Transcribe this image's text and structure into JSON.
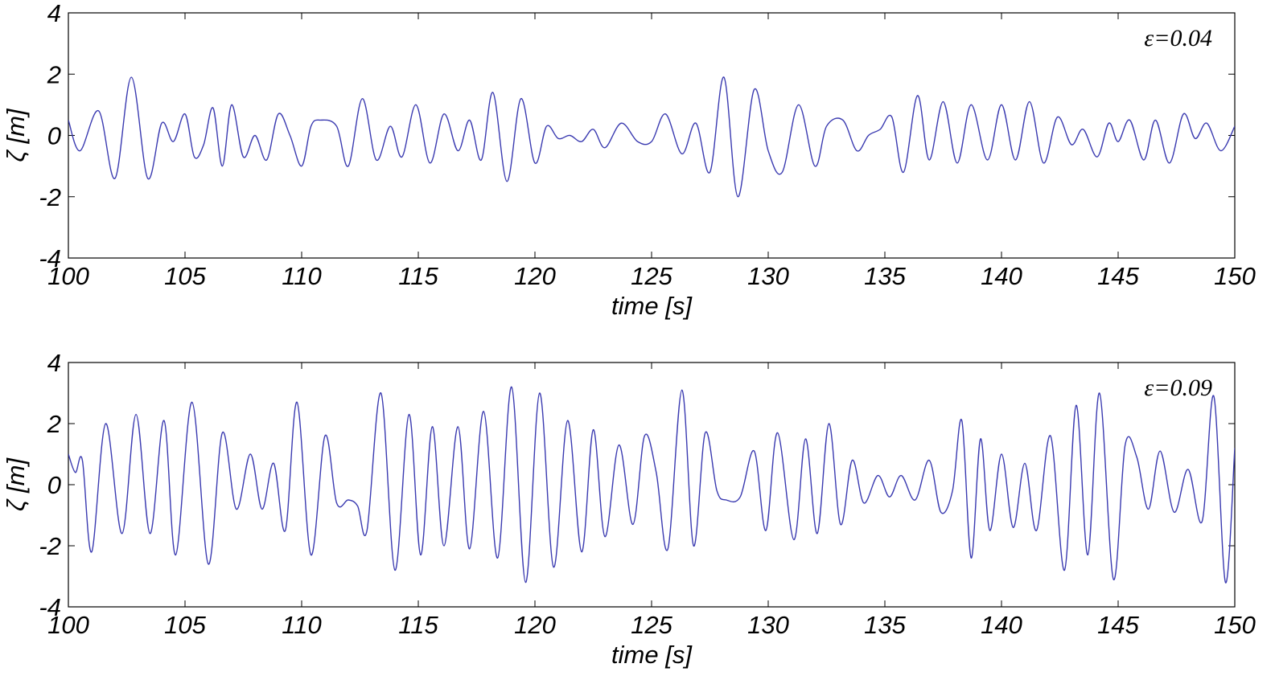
{
  "chart_data": [
    {
      "type": "line",
      "annotation": "ε=0.04",
      "xlabel": "time [s]",
      "ylabel": "ζ [m]",
      "xlim": [
        100,
        150
      ],
      "ylim": [
        -4,
        4
      ],
      "xticks": [
        100,
        105,
        110,
        115,
        120,
        125,
        130,
        135,
        140,
        145,
        150
      ],
      "yticks": [
        4,
        2,
        0,
        -2,
        -4
      ],
      "grid": false,
      "x": [
        100.0,
        100.5,
        101.3,
        102.0,
        102.7,
        103.4,
        104.0,
        104.5,
        105.0,
        105.4,
        105.8,
        106.2,
        106.6,
        107.0,
        107.5,
        108.0,
        108.5,
        109.0,
        109.5,
        110.0,
        110.4,
        110.8,
        111.5,
        112.0,
        112.6,
        113.2,
        113.8,
        114.3,
        114.9,
        115.5,
        116.1,
        116.7,
        117.2,
        117.7,
        118.2,
        118.8,
        119.4,
        120.0,
        120.5,
        121.0,
        121.5,
        122.0,
        122.5,
        123.0,
        123.7,
        124.4,
        125.0,
        125.6,
        126.3,
        126.9,
        127.5,
        128.1,
        128.7,
        129.4,
        130.0,
        130.6,
        131.3,
        132.0,
        132.5,
        133.2,
        133.8,
        134.3,
        134.8,
        135.3,
        135.8,
        136.4,
        136.9,
        137.5,
        138.1,
        138.7,
        139.4,
        140.0,
        140.6,
        141.2,
        141.8,
        142.4,
        143.0,
        143.5,
        144.1,
        144.6,
        145.0,
        145.5,
        146.1,
        146.6,
        147.2,
        147.8,
        148.3,
        148.8,
        149.4,
        150.0
      ],
      "values": [
        0.5,
        -0.5,
        0.8,
        -1.4,
        1.9,
        -1.4,
        0.4,
        -0.2,
        0.7,
        -0.7,
        -0.3,
        0.9,
        -1.0,
        1.0,
        -0.7,
        0.0,
        -0.8,
        0.7,
        0.0,
        -1.0,
        0.3,
        0.5,
        0.3,
        -1.0,
        1.2,
        -0.8,
        0.3,
        -0.7,
        1.0,
        -0.9,
        0.7,
        -0.5,
        0.5,
        -0.8,
        1.4,
        -1.5,
        1.2,
        -0.9,
        0.3,
        -0.1,
        0.0,
        -0.2,
        0.2,
        -0.4,
        0.4,
        -0.2,
        -0.2,
        0.7,
        -0.6,
        0.4,
        -1.2,
        1.9,
        -2.0,
        1.5,
        -0.5,
        -1.2,
        1.0,
        -1.0,
        0.3,
        0.5,
        -0.5,
        0.0,
        0.2,
        0.6,
        -1.2,
        1.3,
        -0.8,
        1.1,
        -0.9,
        1.0,
        -0.8,
        1.0,
        -0.8,
        1.1,
        -0.9,
        0.6,
        -0.3,
        0.2,
        -0.7,
        0.4,
        -0.2,
        0.5,
        -0.8,
        0.5,
        -0.9,
        0.7,
        -0.1,
        0.4,
        -0.5,
        0.3
      ]
    },
    {
      "type": "line",
      "annotation": "ε=0.09",
      "xlabel": "time [s]",
      "ylabel": "ζ [m]",
      "xlim": [
        100,
        150
      ],
      "ylim": [
        -4,
        4
      ],
      "xticks": [
        100,
        105,
        110,
        115,
        120,
        125,
        130,
        135,
        140,
        145,
        150
      ],
      "yticks": [
        4,
        2,
        0,
        -2,
        -4
      ],
      "grid": false,
      "x": [
        100.0,
        100.3,
        100.6,
        101.0,
        101.6,
        102.3,
        102.9,
        103.5,
        104.1,
        104.6,
        105.3,
        106.0,
        106.6,
        107.2,
        107.8,
        108.3,
        108.8,
        109.3,
        109.8,
        110.4,
        111.0,
        111.5,
        112.0,
        112.4,
        112.8,
        113.4,
        114.0,
        114.6,
        115.1,
        115.6,
        116.1,
        116.7,
        117.2,
        117.8,
        118.4,
        119.0,
        119.6,
        120.2,
        120.8,
        121.4,
        122.0,
        122.5,
        123.0,
        123.6,
        124.2,
        124.7,
        125.2,
        125.7,
        126.3,
        126.8,
        127.3,
        127.8,
        128.2,
        128.8,
        129.4,
        129.9,
        130.4,
        131.1,
        131.6,
        132.1,
        132.6,
        133.1,
        133.6,
        134.1,
        134.7,
        135.2,
        135.7,
        136.3,
        136.9,
        137.4,
        137.9,
        138.3,
        138.7,
        139.1,
        139.5,
        140.0,
        140.5,
        141.0,
        141.5,
        142.1,
        142.7,
        143.2,
        143.7,
        144.2,
        144.8,
        145.3,
        145.8,
        146.3,
        146.8,
        147.4,
        148.0,
        148.6,
        149.1,
        149.6,
        150.0
      ],
      "values": [
        1.0,
        0.4,
        0.8,
        -2.2,
        2.0,
        -1.6,
        2.3,
        -1.6,
        2.1,
        -2.3,
        2.7,
        -2.6,
        1.7,
        -0.8,
        1.0,
        -0.8,
        0.7,
        -1.5,
        2.7,
        -2.3,
        1.6,
        -0.6,
        -0.5,
        -0.7,
        -1.5,
        3.0,
        -2.8,
        2.3,
        -2.3,
        1.9,
        -2.0,
        1.9,
        -2.1,
        2.4,
        -2.4,
        3.2,
        -3.2,
        3.0,
        -2.7,
        2.1,
        -2.2,
        1.8,
        -1.7,
        1.3,
        -1.3,
        1.6,
        0.4,
        -2.1,
        3.1,
        -2.0,
        1.7,
        -0.2,
        -0.5,
        -0.4,
        1.1,
        -1.5,
        1.7,
        -1.8,
        1.5,
        -1.6,
        2.0,
        -1.3,
        0.8,
        -0.6,
        0.3,
        -0.4,
        0.3,
        -0.5,
        0.8,
        -0.9,
        -0.2,
        2.1,
        -2.4,
        1.5,
        -1.5,
        1.0,
        -1.4,
        0.7,
        -1.5,
        1.6,
        -2.8,
        2.6,
        -2.3,
        3.0,
        -3.1,
        1.3,
        0.9,
        -0.8,
        1.1,
        -0.9,
        0.5,
        -1.2,
        2.9,
        -3.2,
        1.2
      ]
    }
  ]
}
